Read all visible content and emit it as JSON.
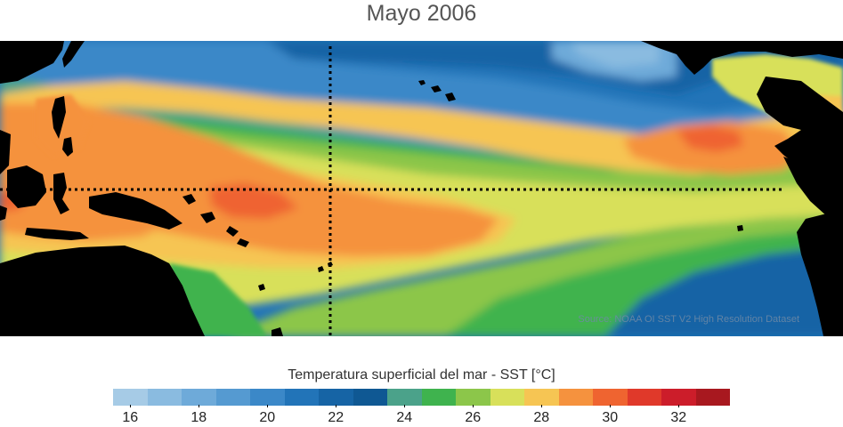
{
  "title": "Mayo 2006",
  "source_note": "Source: NOAA OI SST V2 High Resolution Dataset",
  "colorbar": {
    "title": "Temperatura superficial del mar - SST  [°C]",
    "colors": [
      "#a6cbe6",
      "#8abbe0",
      "#6eaad9",
      "#559ad1",
      "#3b88c8",
      "#2274b8",
      "#1664a5",
      "#0f5893",
      "#4ba28a",
      "#3fb34e",
      "#8cc64a",
      "#d8e05a",
      "#f6c553",
      "#f5923e",
      "#ef6430",
      "#e0392a",
      "#cc1d2a",
      "#a8181f"
    ],
    "tick_labels": [
      "16",
      "18",
      "20",
      "22",
      "24",
      "26",
      "28",
      "30",
      "32"
    ]
  }
}
